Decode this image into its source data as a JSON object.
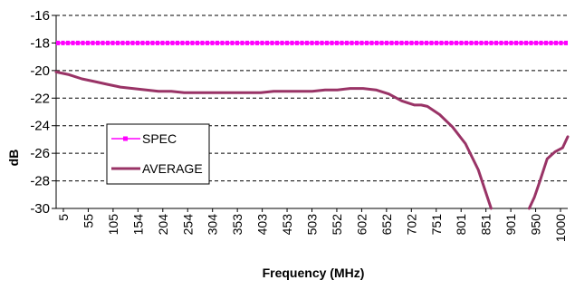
{
  "chart_data": {
    "type": "line",
    "title": "",
    "xlabel": "Frequency (MHz)",
    "ylabel": "dB",
    "ylim": [
      -30,
      -16
    ],
    "yticks": [
      -16,
      -18,
      -20,
      -22,
      -24,
      -26,
      -28,
      -30
    ],
    "xlim": [
      5,
      1000
    ],
    "x_tick_labels": [
      "5",
      "55",
      "105",
      "154",
      "204",
      "254",
      "304",
      "353",
      "403",
      "453",
      "503",
      "552",
      "602",
      "652",
      "702",
      "751",
      "801",
      "851",
      "901",
      "950",
      "1000"
    ],
    "grid": "horizontal dashed",
    "legend_position": "left",
    "series": [
      {
        "name": "SPEC",
        "color": "#ff00ff",
        "marker": "square",
        "x": [
          5,
          1000
        ],
        "y": [
          -18,
          -18
        ]
      },
      {
        "name": "AVERAGE",
        "color": "#993366",
        "x": [
          5,
          30,
          55,
          80,
          105,
          130,
          154,
          180,
          204,
          229,
          254,
          304,
          353,
          403,
          428,
          453,
          503,
          528,
          552,
          577,
          602,
          627,
          652,
          677,
          702,
          715,
          727,
          751,
          776,
          801,
          826,
          851,
          910,
          925,
          935,
          945,
          960,
          975,
          990,
          1000
        ],
        "y": [
          -20.1,
          -20.3,
          -20.6,
          -20.8,
          -21.0,
          -21.2,
          -21.3,
          -21.4,
          -21.5,
          -21.5,
          -21.6,
          -21.6,
          -21.6,
          -21.6,
          -21.5,
          -21.5,
          -21.5,
          -21.4,
          -21.4,
          -21.3,
          -21.3,
          -21.4,
          -21.7,
          -22.2,
          -22.5,
          -22.5,
          -22.6,
          -23.2,
          -24.1,
          -25.3,
          -27.2,
          -30.0,
          null,
          -30.0,
          -29.2,
          -28.1,
          -26.4,
          -25.9,
          -25.6,
          -24.8
        ]
      }
    ]
  }
}
